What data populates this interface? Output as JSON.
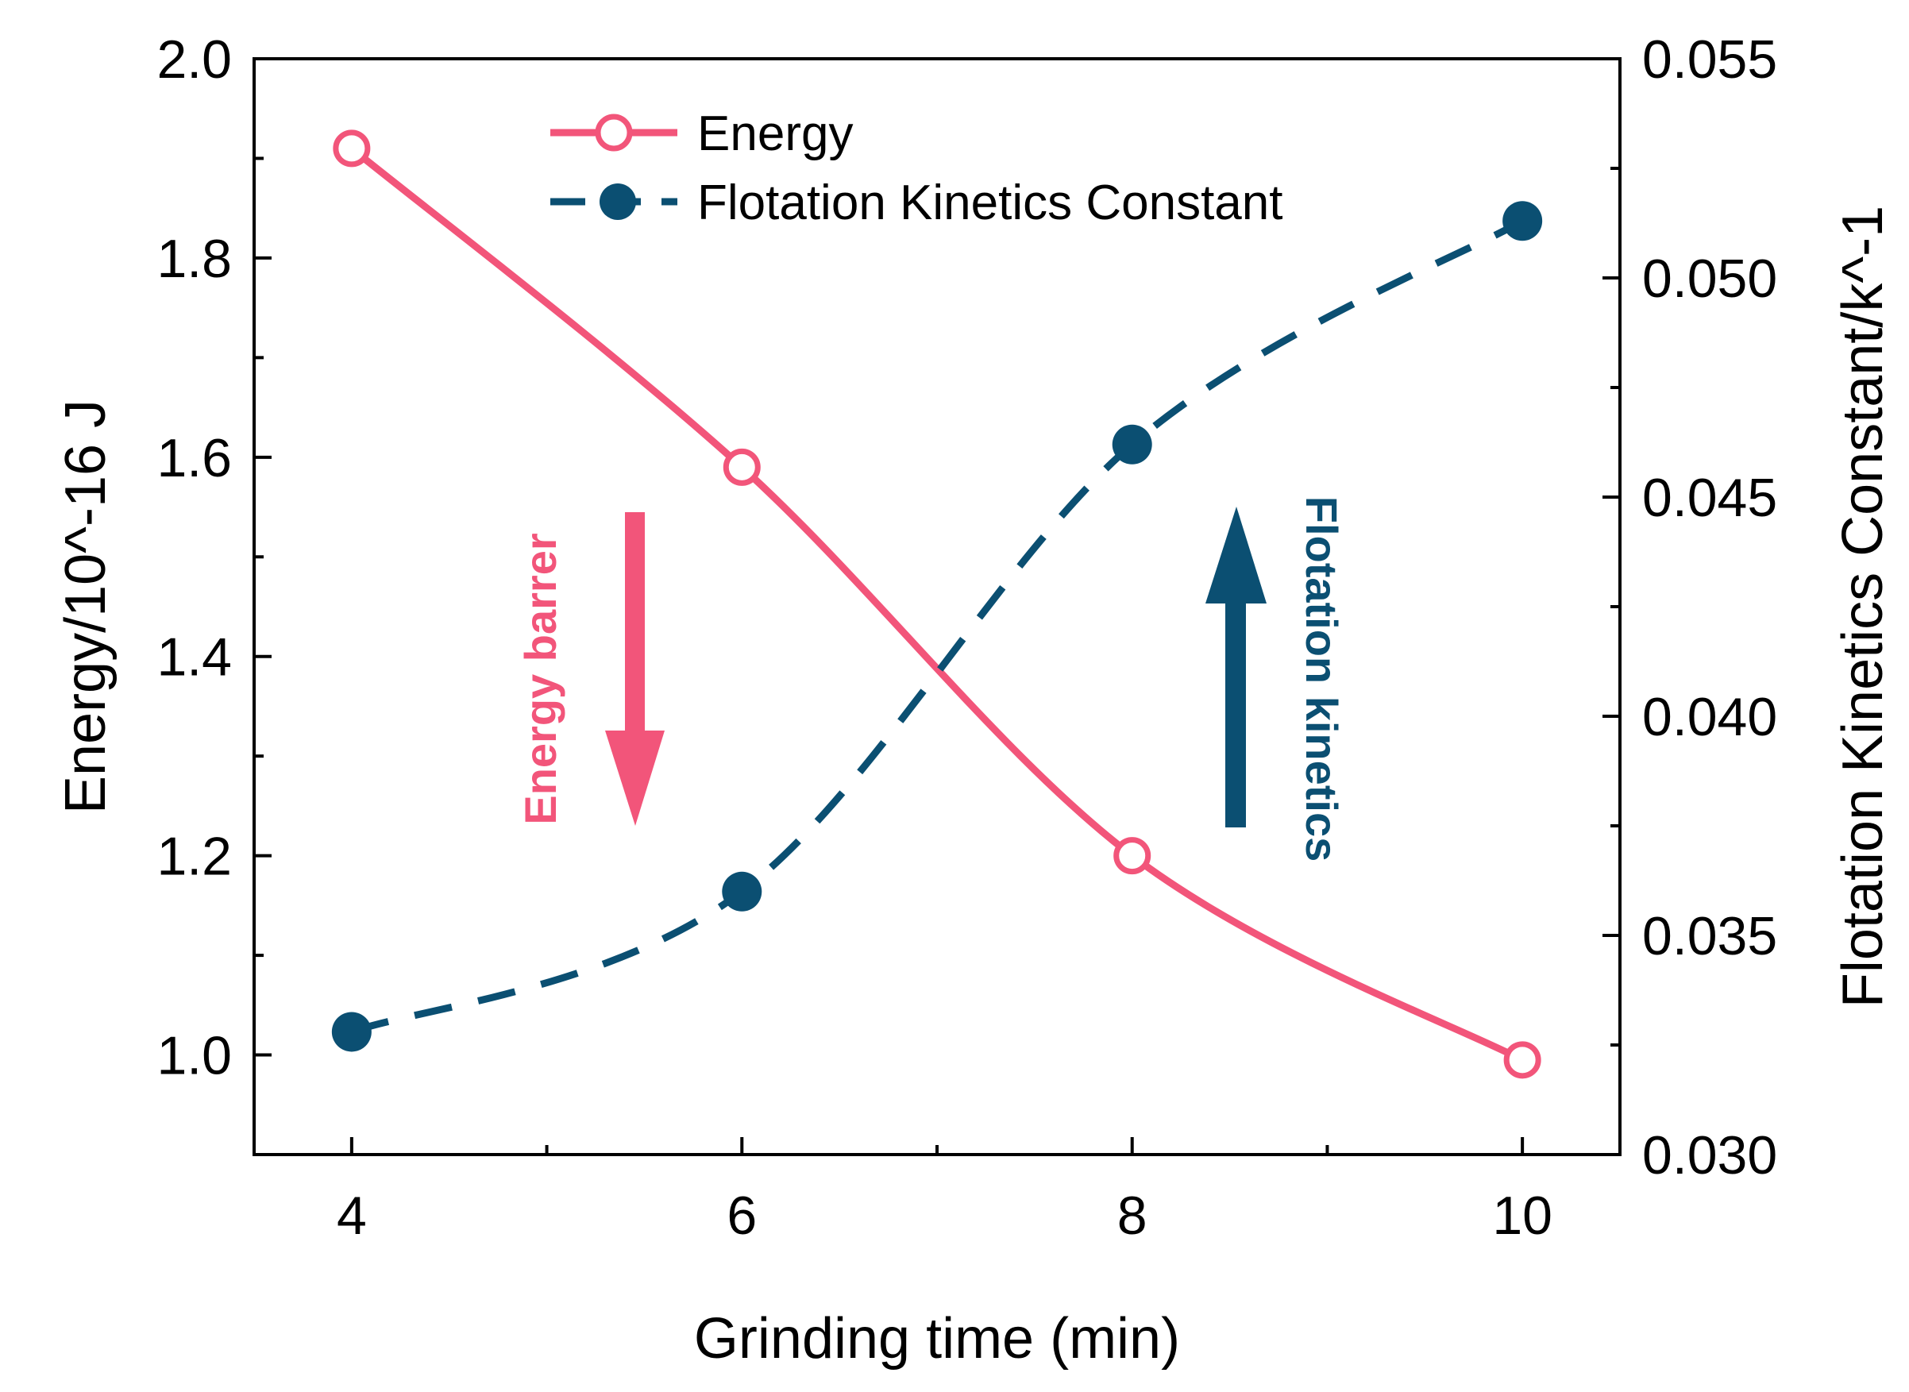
{
  "chart_data": {
    "type": "line",
    "title": "",
    "xlabel": "Grinding time (min)",
    "ylabel_left": "Energy/10^-16 J",
    "ylabel_right": "Flotation Kinetics Constant/k^-1",
    "xlim": [
      3.5,
      10.5
    ],
    "ylim_left": [
      0.9,
      2.0
    ],
    "ylim_right": [
      0.03,
      0.055
    ],
    "x_ticks": [
      "4",
      "6",
      "8",
      "10"
    ],
    "y_left_ticks": [
      "1.0",
      "1.2",
      "1.4",
      "1.6",
      "1.8",
      "2.0"
    ],
    "y_right_ticks": [
      "0.030",
      "0.035",
      "0.040",
      "0.045",
      "0.050",
      "0.055"
    ],
    "grid": false,
    "legend_position": "top",
    "series": [
      {
        "name": "Energy",
        "axis": "left",
        "x": [
          4,
          6,
          8,
          10
        ],
        "values": [
          1.91,
          1.59,
          1.2,
          0.995
        ],
        "color": "#f2557a",
        "line_style": "solid",
        "marker": "open-circle"
      },
      {
        "name": "Flotation Kinetics Constant",
        "axis": "right",
        "x": [
          4,
          6,
          8,
          10
        ],
        "values": [
          0.0328,
          0.036,
          0.0462,
          0.0513
        ],
        "color": "#0b4f72",
        "line_style": "dashed",
        "marker": "filled-circle"
      }
    ],
    "annotations": [
      {
        "text": "Energy barrer",
        "color": "#f2557a",
        "direction": "down"
      },
      {
        "text": "Flotation kinetics",
        "color": "#0b4f72",
        "direction": "up"
      }
    ]
  }
}
